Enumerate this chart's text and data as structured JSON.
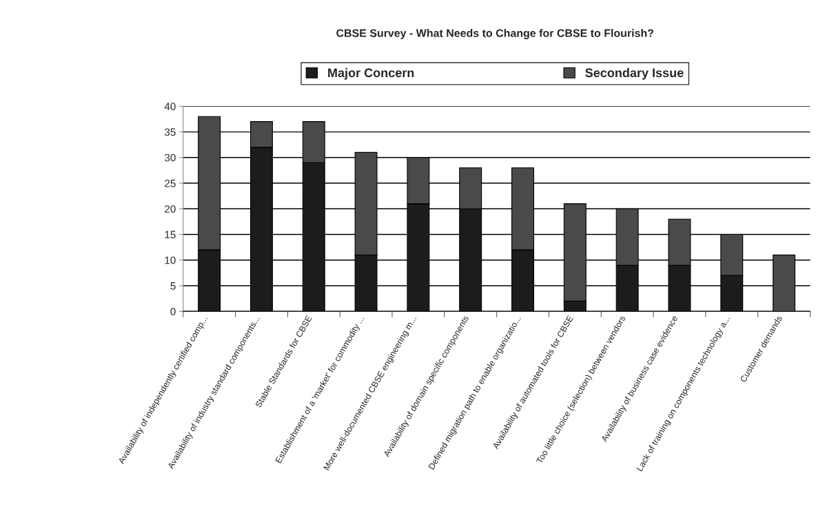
{
  "chart_data": {
    "type": "bar",
    "title": "CBSE Survey - What Needs to Change for CBSE to Flourish?",
    "categories": [
      "Availability of independently certified comp...",
      "Availability of industry standard components...",
      "Stable Standards for CBSE",
      "Establishment of a 'market' for commodity ...",
      "More well-documented CBSE engineering m...",
      "Availability of domain specific components",
      "Defined migration path to enable organizatio...",
      "Availability of automated tools for CBSE",
      "Too little choice (selection) between vendors",
      "Availability of business case evidence",
      "Lack of training on components technology a...",
      "Customer demands"
    ],
    "stacked": true,
    "series": [
      {
        "name": "Major Concern",
        "color": "#1c1c1c",
        "values": [
          12,
          32,
          29,
          11,
          21,
          20,
          12,
          2,
          9,
          9,
          7,
          0
        ]
      },
      {
        "name": "Secondary Issue",
        "color": "#4a4a4a",
        "values": [
          26,
          5,
          8,
          20,
          9,
          8,
          16,
          19,
          11,
          9,
          8,
          11
        ]
      }
    ],
    "ylim": [
      0,
      40
    ],
    "yticks": [
      0,
      5,
      10,
      15,
      20,
      25,
      30,
      35,
      40
    ],
    "grid": "y",
    "legend": "top"
  }
}
